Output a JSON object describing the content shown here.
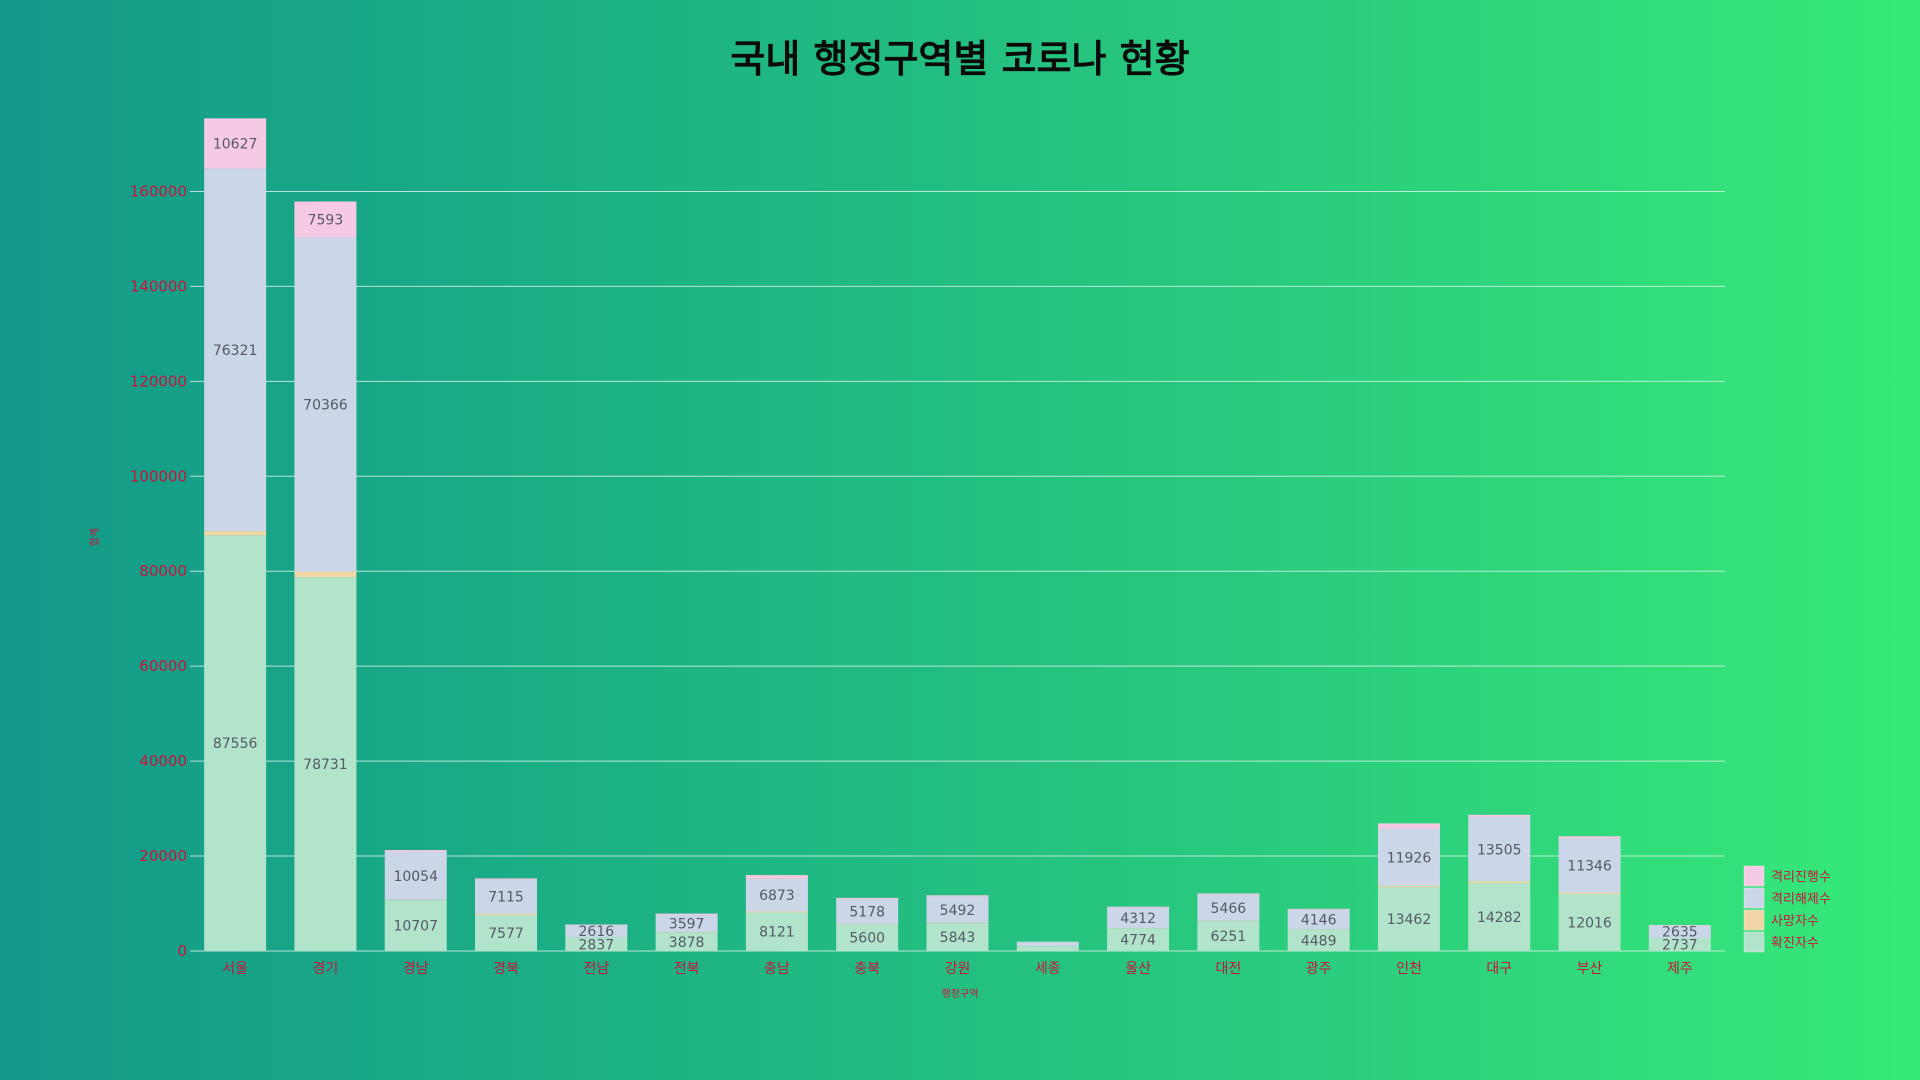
{
  "chart_data": {
    "type": "bar",
    "stacked": true,
    "title": "국내 행정구역별 코로나 현황",
    "xlabel": "행정구역",
    "ylabel": "합계",
    "ylim": [
      0,
      175000
    ],
    "yticks": [
      0,
      20000,
      40000,
      60000,
      80000,
      100000,
      120000,
      140000,
      160000
    ],
    "grid": true,
    "legend_position": "bottom-right",
    "categories": [
      "서울",
      "경기",
      "경남",
      "경북",
      "전남",
      "전북",
      "충남",
      "충북",
      "강원",
      "세종",
      "울산",
      "대전",
      "광주",
      "인천",
      "대구",
      "부산",
      "제주"
    ],
    "series": [
      {
        "name": "확진자수",
        "color": "#b2e3cb",
        "values": [
          87556,
          78731,
          10707,
          7577,
          2837,
          3878,
          8121,
          5600,
          5843,
          1000,
          4774,
          6251,
          4489,
          13462,
          14282,
          12016,
          2737
        ],
        "labels": [
          "87556",
          "78731",
          "10707",
          "7577",
          "2837",
          "3878",
          "8121",
          "5600",
          "5843",
          "",
          "4774",
          "6251",
          "4489",
          "13462",
          "14282",
          "12016",
          "2737"
        ]
      },
      {
        "name": "사망자수",
        "color": "#f3d6a5",
        "values": [
          900,
          1200,
          100,
          300,
          30,
          100,
          200,
          100,
          100,
          5,
          50,
          100,
          50,
          300,
          400,
          300,
          5
        ],
        "labels": [
          "",
          "",
          "",
          "",
          "",
          "",
          "",
          "",
          "",
          "",
          "",
          "",
          "",
          "",
          "",
          "",
          ""
        ]
      },
      {
        "name": "격리해제수",
        "color": "#cbd6e8",
        "values": [
          76321,
          70366,
          10054,
          7115,
          2616,
          3597,
          6873,
          5178,
          5492,
          900,
          4312,
          5466,
          4146,
          11926,
          13505,
          11346,
          2635
        ],
        "labels": [
          "76321",
          "70366",
          "10054",
          "7115",
          "2616",
          "3597",
          "6873",
          "5178",
          "5492",
          "",
          "4312",
          "5466",
          "4146",
          "11926",
          "13505",
          "11346",
          "2635"
        ]
      },
      {
        "name": "격리진행수",
        "color": "#f6cae4",
        "values": [
          10627,
          7593,
          400,
          300,
          100,
          300,
          800,
          300,
          300,
          50,
          200,
          300,
          200,
          1200,
          500,
          500,
          100
        ],
        "labels": [
          "10627",
          "7593",
          "",
          "",
          "",
          "",
          "",
          "",
          "",
          "",
          "",
          "",
          "",
          "",
          "",
          "",
          ""
        ]
      }
    ]
  }
}
